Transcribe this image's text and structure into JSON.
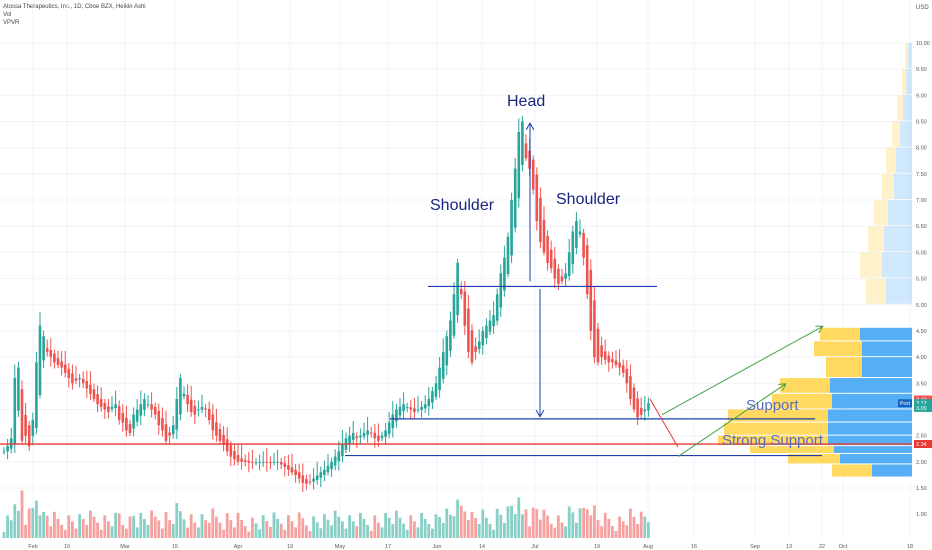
{
  "header": {
    "symbol_line": "Atossa Therapeutics, Inc., 1D, Cboe BZX, Heikin Ashi",
    "indicator_vol": "Vol",
    "indicator_vpvr": "VPVR"
  },
  "colors": {
    "bull": "#26a69a",
    "bear": "#ef5350",
    "vol_bull": "#88cfc6",
    "vol_bear": "#f5a1a0",
    "annotation_blue": "#1a237e",
    "line_blue": "#1e3fae",
    "support_red": "#e53935",
    "arrow_green": "#43a047",
    "vp_blue": "#42a5f5",
    "vp_yellow": "#ffd54f"
  },
  "annotations": {
    "head": "Head",
    "shoulder_left": "Shoulder",
    "shoulder_right": "Shoulder",
    "support": "Support",
    "strong_support": "Strong Support"
  },
  "axis": {
    "currency": "USD",
    "price_badges": [
      "3.19",
      "3.12",
      "3.09",
      "2.34"
    ],
    "post_label": "Post"
  },
  "chart_data": {
    "type": "candlestick",
    "ylim": [
      1.25,
      10.25
    ],
    "y_ticks": [
      1.0,
      1.5,
      2.0,
      2.5,
      3.0,
      3.5,
      4.0,
      4.5,
      5.0,
      5.5,
      6.0,
      6.5,
      7.0,
      7.5,
      8.0,
      8.5,
      9.0,
      9.5,
      10.0
    ],
    "x_ticks": [
      "Feb",
      "10",
      "Mar",
      "15",
      "Apr",
      "19",
      "May",
      "17",
      "Jun",
      "14",
      "Jul",
      "19",
      "Aug",
      "16",
      "Sep",
      "13",
      "22",
      "Oct",
      "18"
    ],
    "neckline": 5.35,
    "support": 2.82,
    "support_lower": 2.12,
    "strong_support": 2.34,
    "green_arrow_1": {
      "from": 2.9,
      "to": 4.58
    },
    "green_arrow_2": {
      "from": 2.1,
      "to": 3.48
    },
    "closes": [
      2.2,
      2.3,
      2.45,
      3.6,
      3.8,
      2.4,
      2.5,
      2.3,
      2.8,
      3.9,
      4.6,
      4.4,
      4.1,
      4.0,
      3.9,
      3.85,
      3.8,
      3.7,
      3.6,
      3.5,
      3.55,
      3.6,
      3.5,
      3.4,
      3.3,
      3.2,
      3.1,
      3.05,
      3.0,
      2.95,
      3.05,
      3.1,
      2.8,
      2.75,
      2.6,
      2.55,
      2.9,
      3.0,
      3.1,
      3.2,
      3.1,
      3.0,
      2.9,
      2.7,
      2.6,
      2.4,
      2.5,
      2.7,
      3.2,
      3.6,
      3.3,
      3.1,
      2.95,
      2.9,
      3.0,
      3.05,
      3.0,
      2.8,
      2.6,
      2.5,
      2.4,
      2.35,
      2.2,
      2.1,
      2.05,
      2.0,
      2.0,
      2.0,
      1.98,
      1.98,
      1.99,
      2.0,
      2.0,
      1.99,
      1.98,
      2.0,
      2.0,
      1.95,
      1.9,
      1.85,
      1.8,
      1.75,
      1.68,
      1.6,
      1.58,
      1.62,
      1.68,
      1.74,
      1.8,
      1.85,
      1.92,
      2.0,
      2.1,
      2.2,
      2.35,
      2.45,
      2.5,
      2.55,
      2.45,
      2.5,
      2.55,
      2.6,
      2.55,
      2.45,
      2.4,
      2.5,
      2.6,
      2.75,
      2.9,
      3.0,
      3.05,
      3.1,
      3.05,
      3.0,
      2.95,
      3.0,
      3.05,
      3.1,
      3.2,
      3.35,
      3.5,
      3.8,
      4.1,
      4.4,
      4.7,
      5.2,
      5.8,
      5.2,
      4.6,
      4.1,
      3.9,
      4.1,
      4.3,
      4.5,
      4.6,
      4.7,
      4.8,
      5.2,
      5.6,
      5.9,
      6.3,
      7.0,
      7.6,
      8.3,
      8.5,
      7.8,
      7.6,
      7.2,
      6.6,
      6.2,
      6.0,
      5.8,
      5.7,
      5.5,
      5.4,
      5.45,
      5.6,
      6.0,
      6.4,
      6.6,
      6.4,
      5.9,
      5.2,
      4.5,
      4.0,
      3.9,
      4.0,
      3.95,
      3.9,
      3.9,
      3.85,
      3.8,
      3.7,
      3.5,
      3.2,
      3.0,
      2.85,
      2.9,
      3.0,
      3.12
    ]
  }
}
